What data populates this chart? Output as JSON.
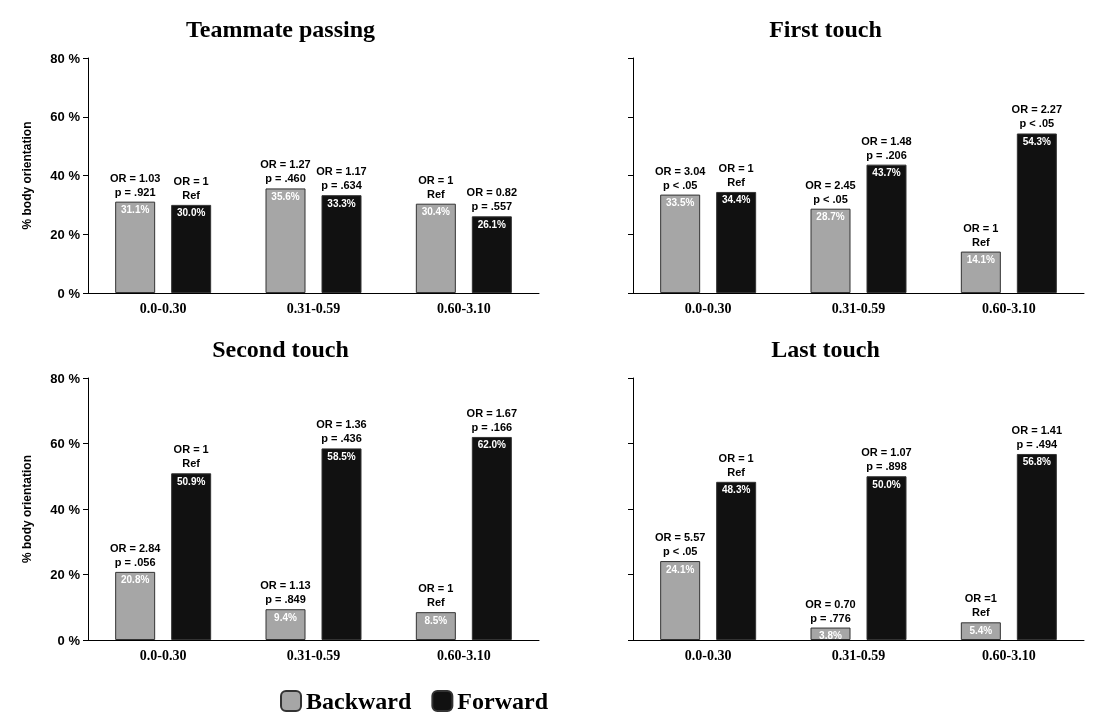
{
  "chart_data": [
    {
      "type": "bar",
      "title": "Teammate passing",
      "ylabel": "% body orientation",
      "categories": [
        "0.0-0.30",
        "0.31-0.59",
        "0.60-3.10"
      ],
      "ylim": [
        0,
        80
      ],
      "yticks": [
        {
          "value": 0,
          "label": "0 %"
        },
        {
          "value": 20,
          "label": "20 %"
        },
        {
          "value": 40,
          "label": "40 %"
        },
        {
          "value": 60,
          "label": "60 %"
        },
        {
          "value": 80,
          "label": "80 %"
        }
      ],
      "series": [
        {
          "color": "#a6a6a6",
          "values": [
            31.1,
            35.6,
            30.4
          ],
          "value_labels": [
            "31.1%",
            "35.6%",
            "30.4%"
          ]
        },
        {
          "color": "#111111",
          "values": [
            30.0,
            33.3,
            26.1
          ],
          "value_labels": [
            "30.0%",
            "33.3%",
            "26.1%"
          ]
        }
      ],
      "annotations": [
        "OR = 1.03\np = .921",
        "OR = 1\nRef",
        "OR = 1.27\np = .460",
        "OR = 1.17\np = .634",
        "OR = 1\nRef",
        "OR = 0.82\np = .557"
      ]
    },
    {
      "type": "bar",
      "title": "First touch",
      "categories": [
        "0.0-0.30",
        "0.31-0.59",
        "0.60-3.10"
      ],
      "ylim": [
        0,
        80
      ],
      "yticks": [
        {
          "value": 0,
          "label": null
        },
        {
          "value": 20,
          "label": null
        },
        {
          "value": 40,
          "label": null
        },
        {
          "value": 60,
          "label": null
        },
        {
          "value": 80,
          "label": null
        }
      ],
      "tick_labels": "x",
      "series": [
        {
          "color": "#a6a6a6",
          "values": [
            33.5,
            28.7,
            14.1
          ],
          "value_labels": [
            "33.5%",
            "28.7%",
            "14.1%"
          ]
        },
        {
          "color": "#111111",
          "values": [
            34.4,
            43.7,
            54.3
          ],
          "value_labels": [
            "34.4%",
            "43.7%",
            "54.3%"
          ]
        }
      ],
      "annotations": [
        "OR = 3.04\np < .05",
        "OR = 1\nRef",
        "OR = 2.45\np < .05",
        "OR = 1.48\np = .206",
        "OR = 1\nRef",
        "OR = 2.27\np < .05"
      ]
    },
    {
      "type": "bar",
      "title": "Second touch",
      "ylabel": "% body orientation",
      "categories": [
        "0.0-0.30",
        "0.31-0.59",
        "0.60-3.10"
      ],
      "ylim": [
        0,
        80
      ],
      "yticks": [
        {
          "value": 0,
          "label": "0 %"
        },
        {
          "value": 20,
          "label": "20 %"
        },
        {
          "value": 40,
          "label": "40 %"
        },
        {
          "value": 60,
          "label": "60 %"
        },
        {
          "value": 80,
          "label": "80 %"
        }
      ],
      "legend": "bottom",
      "series": [
        {
          "name": "Backward",
          "color": "#a6a6a6",
          "values": [
            20.8,
            9.4,
            8.5
          ],
          "value_labels": [
            "20.8%",
            "9.4%",
            "8.5%"
          ]
        },
        {
          "name": "Forward",
          "color": "#111111",
          "values": [
            50.9,
            58.5,
            62.0
          ],
          "value_labels": [
            "50.9%",
            "58.5%",
            "62.0%"
          ]
        }
      ],
      "annotations": [
        "OR = 2.84\np = .056",
        "OR = 1\nRef",
        "OR = 1.13\np = .849",
        "OR = 1.36\np = .436",
        "OR = 1\nRef",
        "OR = 1.67\np = .166"
      ]
    },
    {
      "type": "bar",
      "title": "Last touch",
      "categories": [
        "0.0-0.30",
        "0.31-0.59",
        "0.60-3.10"
      ],
      "ylim": [
        0,
        80
      ],
      "yticks": [
        {
          "value": 0,
          "label": null
        },
        {
          "value": 20,
          "label": null
        },
        {
          "value": 40,
          "label": null
        },
        {
          "value": 60,
          "label": null
        },
        {
          "value": 80,
          "label": null
        }
      ],
      "tick_labels": "x",
      "series": [
        {
          "color": "#a6a6a6",
          "values": [
            24.1,
            3.8,
            5.4
          ],
          "value_labels": [
            "24.1%",
            "3.8%",
            "5.4%"
          ]
        },
        {
          "color": "#111111",
          "values": [
            48.3,
            50.0,
            56.8
          ],
          "value_labels": [
            "48.3%",
            "50.0%",
            "56.8%"
          ]
        }
      ],
      "annotations": [
        "OR = 5.57\np < .05",
        "OR = 1\nRef",
        "OR = 0.70\np = .776",
        "OR = 1.07\np = .898",
        "OR =1\nRef",
        "OR = 1.41\np = .494"
      ]
    }
  ]
}
